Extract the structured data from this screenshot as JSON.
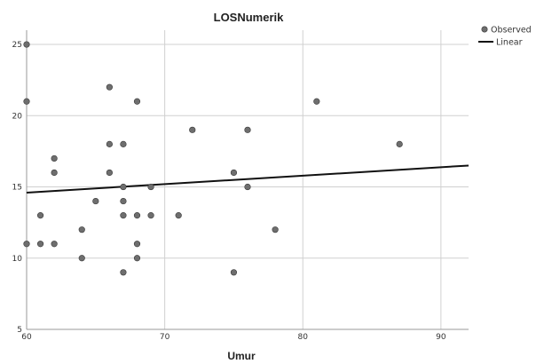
{
  "chart_data": {
    "type": "scatter",
    "title": "LOSNumerik",
    "xlabel": "Umur",
    "ylabel": "",
    "xlim": [
      60,
      92
    ],
    "ylim": [
      5,
      26
    ],
    "xticks": [
      60,
      70,
      80,
      90
    ],
    "yticks": [
      5,
      10,
      15,
      20,
      25
    ],
    "grid": true,
    "legend": {
      "placement": "right",
      "entries": [
        {
          "name": "Observed",
          "marker": "circle"
        },
        {
          "name": "Linear",
          "marker": "line"
        }
      ]
    },
    "series": [
      {
        "name": "Observed",
        "points": [
          [
            60,
            25
          ],
          [
            60,
            21
          ],
          [
            60,
            11
          ],
          [
            61,
            13
          ],
          [
            61,
            11
          ],
          [
            62,
            17
          ],
          [
            62,
            16
          ],
          [
            62,
            11
          ],
          [
            64,
            12
          ],
          [
            64,
            10
          ],
          [
            65,
            14
          ],
          [
            66,
            22
          ],
          [
            66,
            18
          ],
          [
            66,
            16
          ],
          [
            67,
            18
          ],
          [
            67,
            15
          ],
          [
            67,
            14
          ],
          [
            67,
            13
          ],
          [
            67,
            9
          ],
          [
            68,
            21
          ],
          [
            68,
            13
          ],
          [
            68,
            11
          ],
          [
            68,
            10
          ],
          [
            69,
            15
          ],
          [
            69,
            13
          ],
          [
            71,
            13
          ],
          [
            72,
            19
          ],
          [
            75,
            16
          ],
          [
            75,
            9
          ],
          [
            76,
            19
          ],
          [
            76,
            15
          ],
          [
            78,
            12
          ],
          [
            81,
            21
          ],
          [
            87,
            18
          ]
        ]
      },
      {
        "name": "Linear",
        "line": [
          [
            60,
            14.6
          ],
          [
            92,
            16.5
          ]
        ]
      }
    ]
  },
  "colors": {
    "point_fill": "#6e6e6e",
    "point_stroke": "#3a3a3a",
    "line": "#111111",
    "grid": "#d0d0d0",
    "axis": "#9a9a9a"
  }
}
